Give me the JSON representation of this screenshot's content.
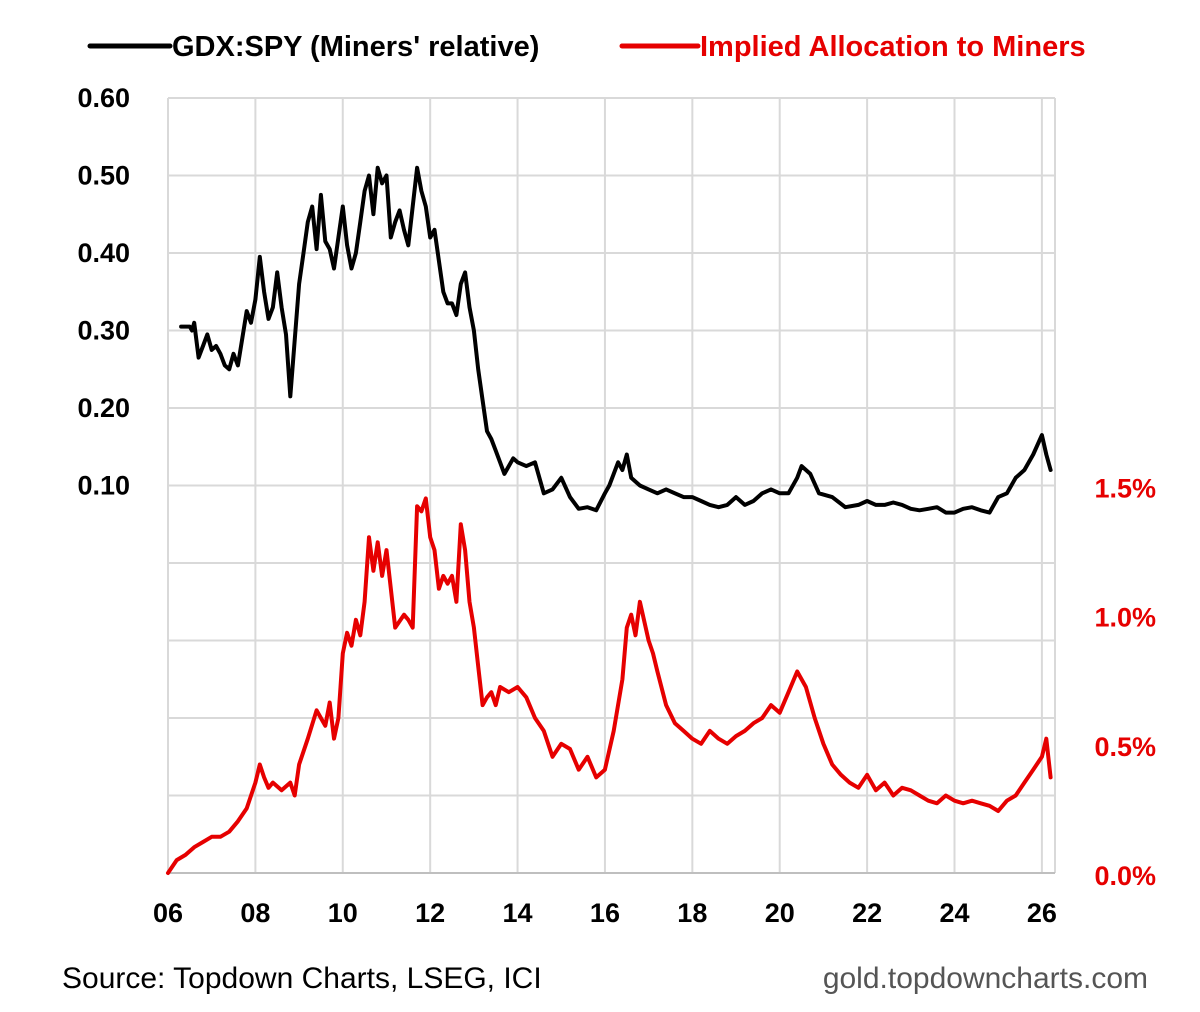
{
  "chart_data": {
    "type": "line",
    "legend": {
      "position": "top",
      "items": [
        {
          "label": "GDX:SPY (Miners' relative)",
          "color": "#000000"
        },
        {
          "label": "Implied Allocation to Miners",
          "color": "#e60000"
        }
      ]
    },
    "x_axis": {
      "ticks": [
        "06",
        "08",
        "10",
        "12",
        "14",
        "16",
        "18",
        "20",
        "22",
        "24",
        "26"
      ],
      "tick_values": [
        2006,
        2008,
        2010,
        2012,
        2014,
        2016,
        2018,
        2020,
        2022,
        2024,
        2026
      ],
      "range": [
        2006,
        2026.3
      ]
    },
    "y_left": {
      "ticks": [
        "0.60",
        "0.50",
        "0.40",
        "0.30",
        "0.20",
        "0.10"
      ],
      "tick_values": [
        0.6,
        0.5,
        0.4,
        0.3,
        0.2,
        0.1
      ],
      "range": [
        -0.4,
        0.6
      ]
    },
    "y_right": {
      "ticks": [
        "1.5%",
        "1.0%",
        "0.5%",
        "0.0%"
      ],
      "tick_values": [
        1.5,
        1.0,
        0.5,
        0.0
      ],
      "range": [
        0.0,
        3.0
      ]
    },
    "grid": true,
    "series": [
      {
        "name": "GDX:SPY (Miners' relative)",
        "axis": "left",
        "color": "#000000",
        "x": [
          2006.3,
          2006.5,
          2006.55,
          2006.6,
          2006.7,
          2006.8,
          2006.9,
          2007.0,
          2007.1,
          2007.2,
          2007.3,
          2007.4,
          2007.5,
          2007.6,
          2007.7,
          2007.8,
          2007.9,
          2008.0,
          2008.1,
          2008.2,
          2008.3,
          2008.4,
          2008.5,
          2008.6,
          2008.7,
          2008.8,
          2009.0,
          2009.1,
          2009.2,
          2009.3,
          2009.4,
          2009.5,
          2009.6,
          2009.7,
          2009.8,
          2009.9,
          2010.0,
          2010.1,
          2010.2,
          2010.3,
          2010.4,
          2010.5,
          2010.6,
          2010.7,
          2010.8,
          2010.9,
          2011.0,
          2011.1,
          2011.2,
          2011.3,
          2011.4,
          2011.5,
          2011.6,
          2011.7,
          2011.8,
          2011.9,
          2012.0,
          2012.1,
          2012.2,
          2012.3,
          2012.4,
          2012.5,
          2012.6,
          2012.7,
          2012.8,
          2012.9,
          2013.0,
          2013.1,
          2013.2,
          2013.3,
          2013.4,
          2013.5,
          2013.6,
          2013.7,
          2013.8,
          2013.9,
          2014.0,
          2014.2,
          2014.4,
          2014.6,
          2014.8,
          2015.0,
          2015.2,
          2015.4,
          2015.6,
          2015.8,
          2016.0,
          2016.1,
          2016.2,
          2016.3,
          2016.4,
          2016.5,
          2016.6,
          2016.8,
          2017.0,
          2017.2,
          2017.4,
          2017.6,
          2017.8,
          2018.0,
          2018.2,
          2018.4,
          2018.6,
          2018.8,
          2019.0,
          2019.2,
          2019.4,
          2019.6,
          2019.8,
          2020.0,
          2020.2,
          2020.4,
          2020.5,
          2020.7,
          2020.9,
          2021.2,
          2021.5,
          2021.8,
          2022.0,
          2022.2,
          2022.4,
          2022.6,
          2022.8,
          2023.0,
          2023.2,
          2023.4,
          2023.6,
          2023.8,
          2024.0,
          2024.2,
          2024.4,
          2024.6,
          2024.8,
          2025.0,
          2025.2,
          2025.4,
          2025.6,
          2025.8,
          2026.0,
          2026.1,
          2026.2
        ],
        "values": [
          0.305,
          0.305,
          0.3,
          0.31,
          0.265,
          0.28,
          0.295,
          0.275,
          0.28,
          0.27,
          0.255,
          0.25,
          0.27,
          0.255,
          0.29,
          0.325,
          0.31,
          0.34,
          0.395,
          0.35,
          0.315,
          0.33,
          0.375,
          0.33,
          0.295,
          0.215,
          0.36,
          0.4,
          0.44,
          0.46,
          0.405,
          0.475,
          0.415,
          0.405,
          0.38,
          0.42,
          0.46,
          0.41,
          0.38,
          0.4,
          0.44,
          0.48,
          0.5,
          0.45,
          0.51,
          0.49,
          0.5,
          0.42,
          0.44,
          0.455,
          0.43,
          0.41,
          0.46,
          0.51,
          0.48,
          0.46,
          0.42,
          0.43,
          0.39,
          0.35,
          0.335,
          0.335,
          0.32,
          0.36,
          0.375,
          0.33,
          0.3,
          0.25,
          0.21,
          0.17,
          0.16,
          0.145,
          0.13,
          0.115,
          0.125,
          0.135,
          0.13,
          0.125,
          0.13,
          0.09,
          0.095,
          0.11,
          0.085,
          0.07,
          0.072,
          0.068,
          0.09,
          0.1,
          0.115,
          0.13,
          0.12,
          0.14,
          0.11,
          0.1,
          0.095,
          0.09,
          0.095,
          0.09,
          0.085,
          0.085,
          0.08,
          0.075,
          0.072,
          0.075,
          0.085,
          0.075,
          0.08,
          0.09,
          0.095,
          0.09,
          0.09,
          0.11,
          0.125,
          0.115,
          0.09,
          0.085,
          0.072,
          0.075,
          0.08,
          0.075,
          0.075,
          0.078,
          0.075,
          0.07,
          0.068,
          0.07,
          0.072,
          0.065,
          0.065,
          0.07,
          0.072,
          0.068,
          0.065,
          0.085,
          0.09,
          0.11,
          0.12,
          0.14,
          0.165,
          0.14,
          0.12
        ]
      },
      {
        "name": "Implied Allocation to Miners",
        "axis": "right",
        "color": "#e60000",
        "x": [
          2006.0,
          2006.2,
          2006.4,
          2006.6,
          2006.8,
          2007.0,
          2007.2,
          2007.4,
          2007.6,
          2007.8,
          2008.0,
          2008.1,
          2008.2,
          2008.3,
          2008.4,
          2008.6,
          2008.8,
          2008.9,
          2009.0,
          2009.2,
          2009.4,
          2009.5,
          2009.6,
          2009.7,
          2009.8,
          2009.9,
          2010.0,
          2010.1,
          2010.2,
          2010.3,
          2010.4,
          2010.5,
          2010.6,
          2010.7,
          2010.8,
          2010.9,
          2011.0,
          2011.2,
          2011.4,
          2011.5,
          2011.6,
          2011.7,
          2011.8,
          2011.9,
          2012.0,
          2012.1,
          2012.2,
          2012.3,
          2012.4,
          2012.5,
          2012.6,
          2012.7,
          2012.8,
          2012.9,
          2013.0,
          2013.1,
          2013.2,
          2013.3,
          2013.4,
          2013.5,
          2013.6,
          2013.8,
          2014.0,
          2014.2,
          2014.4,
          2014.6,
          2014.8,
          2015.0,
          2015.2,
          2015.4,
          2015.6,
          2015.8,
          2016.0,
          2016.2,
          2016.4,
          2016.5,
          2016.6,
          2016.7,
          2016.8,
          2017.0,
          2017.1,
          2017.2,
          2017.4,
          2017.6,
          2017.8,
          2018.0,
          2018.2,
          2018.4,
          2018.6,
          2018.8,
          2019.0,
          2019.2,
          2019.4,
          2019.6,
          2019.8,
          2020.0,
          2020.2,
          2020.4,
          2020.6,
          2020.8,
          2021.0,
          2021.2,
          2021.4,
          2021.6,
          2021.8,
          2022.0,
          2022.2,
          2022.4,
          2022.6,
          2022.8,
          2023.0,
          2023.2,
          2023.4,
          2023.6,
          2023.8,
          2024.0,
          2024.2,
          2024.4,
          2024.6,
          2024.8,
          2025.0,
          2025.2,
          2025.4,
          2025.6,
          2025.8,
          2026.0,
          2026.1,
          2026.2
        ],
        "values": [
          0.0,
          0.05,
          0.07,
          0.1,
          0.12,
          0.14,
          0.14,
          0.16,
          0.2,
          0.25,
          0.35,
          0.42,
          0.37,
          0.33,
          0.35,
          0.32,
          0.35,
          0.3,
          0.42,
          0.52,
          0.63,
          0.6,
          0.57,
          0.66,
          0.52,
          0.6,
          0.85,
          0.93,
          0.88,
          0.98,
          0.92,
          1.05,
          1.3,
          1.17,
          1.28,
          1.15,
          1.25,
          0.95,
          1.0,
          0.98,
          0.95,
          1.42,
          1.4,
          1.45,
          1.3,
          1.25,
          1.1,
          1.15,
          1.12,
          1.15,
          1.05,
          1.35,
          1.25,
          1.05,
          0.95,
          0.8,
          0.65,
          0.68,
          0.7,
          0.65,
          0.72,
          0.7,
          0.72,
          0.68,
          0.6,
          0.55,
          0.45,
          0.5,
          0.48,
          0.4,
          0.45,
          0.37,
          0.4,
          0.55,
          0.75,
          0.95,
          1.0,
          0.92,
          1.05,
          0.9,
          0.85,
          0.78,
          0.65,
          0.58,
          0.55,
          0.52,
          0.5,
          0.55,
          0.52,
          0.5,
          0.53,
          0.55,
          0.58,
          0.6,
          0.65,
          0.62,
          0.7,
          0.78,
          0.72,
          0.6,
          0.5,
          0.42,
          0.38,
          0.35,
          0.33,
          0.38,
          0.32,
          0.35,
          0.3,
          0.33,
          0.32,
          0.3,
          0.28,
          0.27,
          0.3,
          0.28,
          0.27,
          0.28,
          0.27,
          0.26,
          0.24,
          0.28,
          0.3,
          0.35,
          0.4,
          0.45,
          0.52,
          0.37
        ]
      }
    ]
  },
  "footer": {
    "source": "Source: Topdown Charts, LSEG, ICI",
    "website": "gold.topdowncharts.com"
  }
}
